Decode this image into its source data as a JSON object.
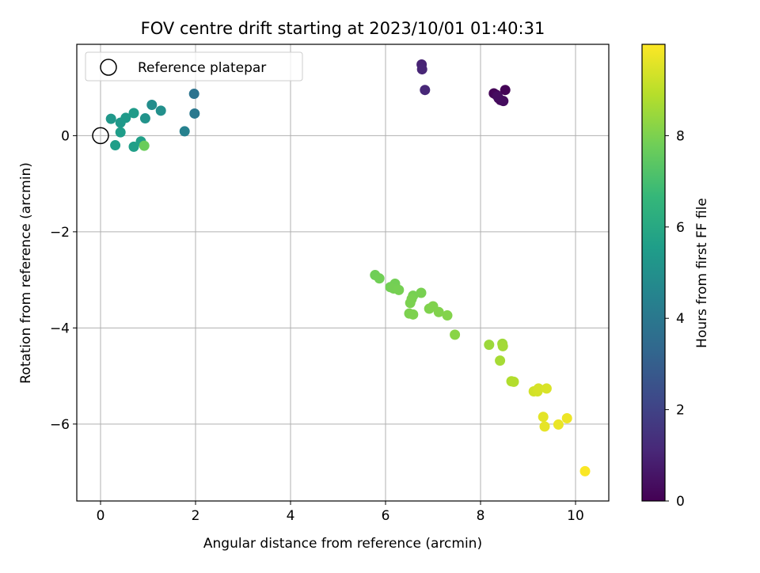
{
  "chart_data": {
    "type": "scatter",
    "title": "FOV centre drift starting at 2023/10/01 01:40:31",
    "xlabel": "Angular distance from reference (arcmin)",
    "ylabel": "Rotation from reference (arcmin)",
    "xlim": [
      -0.5,
      10.7
    ],
    "ylim": [
      -7.6,
      1.9
    ],
    "xticks": [
      0,
      2,
      4,
      6,
      8,
      10
    ],
    "yticks": [
      0,
      -2,
      -4,
      -6
    ],
    "xtick_labels": [
      "0",
      "2",
      "4",
      "6",
      "8",
      "10"
    ],
    "ytick_labels": [
      "0",
      "−2",
      "−4",
      "−6"
    ],
    "grid": true,
    "legend": {
      "placement": "top-left",
      "entries": [
        "Reference platepar"
      ]
    },
    "reference_point": {
      "x": 0,
      "y": 0,
      "label": "Reference platepar"
    },
    "colorbar": {
      "label": "Hours from first FF file",
      "min": 0,
      "max": 10,
      "ticks": [
        0,
        2,
        4,
        6,
        8
      ],
      "tick_labels": [
        "0",
        "2",
        "4",
        "6",
        "8"
      ],
      "colormap": "viridis",
      "stops": [
        "#440154",
        "#482878",
        "#3e4989",
        "#31688e",
        "#26828e",
        "#1f9e89",
        "#35b779",
        "#6ece58",
        "#b5de2b",
        "#fde725"
      ]
    },
    "series": [
      {
        "points": [
          {
            "x": 8.52,
            "y": 0.95,
            "hours": 0.05
          },
          {
            "x": 8.28,
            "y": 0.88,
            "hours": 0.1
          },
          {
            "x": 8.33,
            "y": 0.85,
            "hours": 0.15
          },
          {
            "x": 8.38,
            "y": 0.78,
            "hours": 0.2
          },
          {
            "x": 8.42,
            "y": 0.74,
            "hours": 0.25
          },
          {
            "x": 8.48,
            "y": 0.72,
            "hours": 0.3
          },
          {
            "x": 8.36,
            "y": 0.82,
            "hours": 0.35
          },
          {
            "x": 6.76,
            "y": 1.48,
            "hours": 1.0
          },
          {
            "x": 6.77,
            "y": 1.38,
            "hours": 1.05
          },
          {
            "x": 6.83,
            "y": 0.95,
            "hours": 1.1
          },
          {
            "x": 1.97,
            "y": 0.87,
            "hours": 3.8
          },
          {
            "x": 1.98,
            "y": 0.46,
            "hours": 4.0
          },
          {
            "x": 1.77,
            "y": 0.09,
            "hours": 4.4
          },
          {
            "x": 1.08,
            "y": 0.64,
            "hours": 4.9
          },
          {
            "x": 1.27,
            "y": 0.52,
            "hours": 5.0
          },
          {
            "x": 0.94,
            "y": 0.36,
            "hours": 5.1
          },
          {
            "x": 0.22,
            "y": 0.35,
            "hours": 5.3
          },
          {
            "x": 0.42,
            "y": 0.27,
            "hours": 5.35
          },
          {
            "x": 0.53,
            "y": 0.37,
            "hours": 5.4
          },
          {
            "x": 0.7,
            "y": 0.47,
            "hours": 5.45
          },
          {
            "x": 0.42,
            "y": 0.07,
            "hours": 5.5
          },
          {
            "x": 0.31,
            "y": -0.2,
            "hours": 5.55
          },
          {
            "x": 0.7,
            "y": -0.23,
            "hours": 5.6
          },
          {
            "x": 0.85,
            "y": -0.12,
            "hours": 5.65
          },
          {
            "x": 0.92,
            "y": -0.21,
            "hours": 7.7
          },
          {
            "x": 5.78,
            "y": -2.9,
            "hours": 7.8
          },
          {
            "x": 5.87,
            "y": -2.97,
            "hours": 7.82
          },
          {
            "x": 6.2,
            "y": -3.08,
            "hours": 7.84
          },
          {
            "x": 6.1,
            "y": -3.15,
            "hours": 7.86
          },
          {
            "x": 6.17,
            "y": -3.18,
            "hours": 7.88
          },
          {
            "x": 6.28,
            "y": -3.21,
            "hours": 7.9
          },
          {
            "x": 6.58,
            "y": -3.33,
            "hours": 7.92
          },
          {
            "x": 6.75,
            "y": -3.27,
            "hours": 7.94
          },
          {
            "x": 6.55,
            "y": -3.4,
            "hours": 7.96
          },
          {
            "x": 6.52,
            "y": -3.48,
            "hours": 7.98
          },
          {
            "x": 6.5,
            "y": -3.7,
            "hours": 8.0
          },
          {
            "x": 6.58,
            "y": -3.72,
            "hours": 8.02
          },
          {
            "x": 6.92,
            "y": -3.6,
            "hours": 8.04
          },
          {
            "x": 7.0,
            "y": -3.55,
            "hours": 8.06
          },
          {
            "x": 7.12,
            "y": -3.67,
            "hours": 8.08
          },
          {
            "x": 7.3,
            "y": -3.74,
            "hours": 8.1
          },
          {
            "x": 7.46,
            "y": -4.14,
            "hours": 8.2
          },
          {
            "x": 8.18,
            "y": -4.35,
            "hours": 8.5
          },
          {
            "x": 8.46,
            "y": -4.33,
            "hours": 8.55
          },
          {
            "x": 8.47,
            "y": -4.38,
            "hours": 8.6
          },
          {
            "x": 8.41,
            "y": -4.68,
            "hours": 8.65
          },
          {
            "x": 8.65,
            "y": -5.11,
            "hours": 8.8
          },
          {
            "x": 8.7,
            "y": -5.12,
            "hours": 8.85
          },
          {
            "x": 9.12,
            "y": -5.32,
            "hours": 9.3
          },
          {
            "x": 9.2,
            "y": -5.32,
            "hours": 9.35
          },
          {
            "x": 9.22,
            "y": -5.26,
            "hours": 9.4
          },
          {
            "x": 9.39,
            "y": -5.26,
            "hours": 9.45
          },
          {
            "x": 9.32,
            "y": -5.85,
            "hours": 9.6
          },
          {
            "x": 9.35,
            "y": -6.05,
            "hours": 9.65
          },
          {
            "x": 9.64,
            "y": -6.01,
            "hours": 9.7
          },
          {
            "x": 9.82,
            "y": -5.88,
            "hours": 9.75
          },
          {
            "x": 10.2,
            "y": -6.98,
            "hours": 9.95
          }
        ]
      }
    ]
  }
}
